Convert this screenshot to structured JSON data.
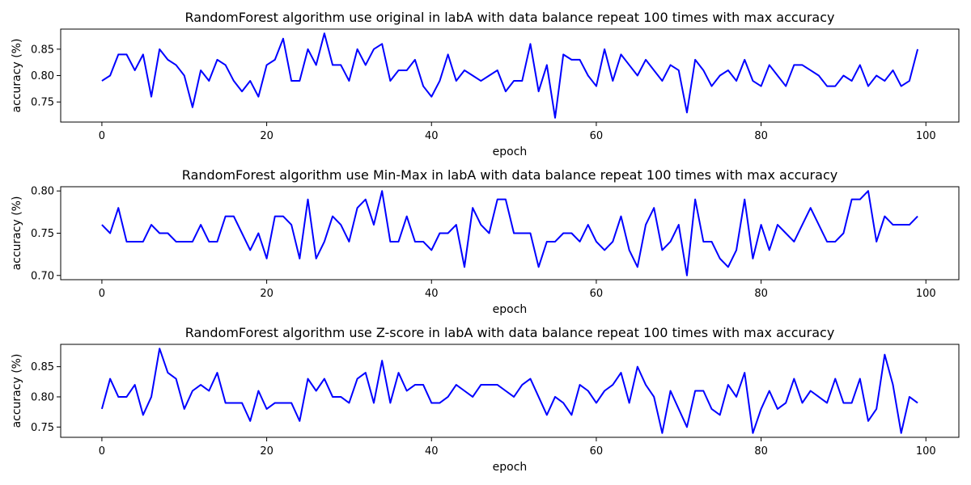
{
  "chart_data": [
    {
      "type": "line",
      "title": "RandomForest algorithm use original in labA with data balance repeat 100 times with max accuracy",
      "xlabel": "epoch",
      "ylabel": "accuracy (%)",
      "xlim": [
        -5,
        104
      ],
      "ylim": [
        0.712,
        0.888
      ],
      "xticks": [
        0,
        20,
        40,
        60,
        80,
        100
      ],
      "xtick_labels": [
        "0",
        "20",
        "40",
        "60",
        "80",
        "100"
      ],
      "yticks": [
        0.75,
        0.8,
        0.85
      ],
      "ytick_labels": [
        "0.75",
        "0.80",
        "0.85"
      ],
      "grid": false,
      "series": [
        {
          "color": "#0000ff",
          "values": [
            0.79,
            0.8,
            0.84,
            0.84,
            0.81,
            0.84,
            0.76,
            0.85,
            0.83,
            0.82,
            0.8,
            0.74,
            0.81,
            0.79,
            0.83,
            0.82,
            0.79,
            0.77,
            0.79,
            0.76,
            0.82,
            0.83,
            0.87,
            0.79,
            0.79,
            0.85,
            0.82,
            0.88,
            0.82,
            0.82,
            0.79,
            0.85,
            0.82,
            0.85,
            0.86,
            0.79,
            0.81,
            0.81,
            0.83,
            0.78,
            0.76,
            0.79,
            0.84,
            0.79,
            0.81,
            0.8,
            0.79,
            0.8,
            0.81,
            0.77,
            0.79,
            0.79,
            0.86,
            0.77,
            0.82,
            0.72,
            0.84,
            0.83,
            0.83,
            0.8,
            0.78,
            0.85,
            0.79,
            0.84,
            0.82,
            0.8,
            0.83,
            0.81,
            0.79,
            0.82,
            0.81,
            0.73,
            0.83,
            0.81,
            0.78,
            0.8,
            0.81,
            0.79,
            0.83,
            0.79,
            0.78,
            0.82,
            0.8,
            0.78,
            0.82,
            0.82,
            0.81,
            0.8,
            0.78,
            0.78,
            0.8,
            0.79,
            0.82,
            0.78,
            0.8,
            0.79,
            0.81,
            0.78,
            0.79,
            0.85
          ]
        }
      ]
    },
    {
      "type": "line",
      "title": "RandomForest algorithm use Min-Max in labA with data balance repeat 100 times with max accuracy",
      "xlabel": "epoch",
      "ylabel": "accuracy (%)",
      "xlim": [
        -5,
        104
      ],
      "ylim": [
        0.695,
        0.805
      ],
      "xticks": [
        0,
        20,
        40,
        60,
        80,
        100
      ],
      "xtick_labels": [
        "0",
        "20",
        "40",
        "60",
        "80",
        "100"
      ],
      "yticks": [
        0.7,
        0.75,
        0.8
      ],
      "ytick_labels": [
        "0.70",
        "0.75",
        "0.80"
      ],
      "grid": false,
      "series": [
        {
          "color": "#0000ff",
          "values": [
            0.76,
            0.75,
            0.78,
            0.74,
            0.74,
            0.74,
            0.76,
            0.75,
            0.75,
            0.74,
            0.74,
            0.74,
            0.76,
            0.74,
            0.74,
            0.77,
            0.77,
            0.75,
            0.73,
            0.75,
            0.72,
            0.77,
            0.77,
            0.76,
            0.72,
            0.79,
            0.72,
            0.74,
            0.77,
            0.76,
            0.74,
            0.78,
            0.79,
            0.76,
            0.8,
            0.74,
            0.74,
            0.77,
            0.74,
            0.74,
            0.73,
            0.75,
            0.75,
            0.76,
            0.71,
            0.78,
            0.76,
            0.75,
            0.79,
            0.79,
            0.75,
            0.75,
            0.75,
            0.71,
            0.74,
            0.74,
            0.75,
            0.75,
            0.74,
            0.76,
            0.74,
            0.73,
            0.74,
            0.77,
            0.73,
            0.71,
            0.76,
            0.78,
            0.73,
            0.74,
            0.76,
            0.7,
            0.79,
            0.74,
            0.74,
            0.72,
            0.71,
            0.73,
            0.79,
            0.72,
            0.76,
            0.73,
            0.76,
            0.75,
            0.74,
            0.76,
            0.78,
            0.76,
            0.74,
            0.74,
            0.75,
            0.79,
            0.79,
            0.8,
            0.74,
            0.77,
            0.76,
            0.76,
            0.76,
            0.77
          ]
        }
      ]
    },
    {
      "type": "line",
      "title": "RandomForest algorithm use Z-score in labA with data balance repeat 100 times with max accuracy",
      "xlabel": "epoch",
      "ylabel": "accuracy (%)",
      "xlim": [
        -5,
        104
      ],
      "ylim": [
        0.733,
        0.887
      ],
      "xticks": [
        0,
        20,
        40,
        60,
        80,
        100
      ],
      "xtick_labels": [
        "0",
        "20",
        "40",
        "60",
        "80",
        "100"
      ],
      "yticks": [
        0.75,
        0.8,
        0.85
      ],
      "ytick_labels": [
        "0.75",
        "0.80",
        "0.85"
      ],
      "grid": false,
      "series": [
        {
          "color": "#0000ff",
          "values": [
            0.78,
            0.83,
            0.8,
            0.8,
            0.82,
            0.77,
            0.8,
            0.88,
            0.84,
            0.83,
            0.78,
            0.81,
            0.82,
            0.81,
            0.84,
            0.79,
            0.79,
            0.79,
            0.76,
            0.81,
            0.78,
            0.79,
            0.79,
            0.79,
            0.76,
            0.83,
            0.81,
            0.83,
            0.8,
            0.8,
            0.79,
            0.83,
            0.84,
            0.79,
            0.86,
            0.79,
            0.84,
            0.81,
            0.82,
            0.82,
            0.79,
            0.79,
            0.8,
            0.82,
            0.81,
            0.8,
            0.82,
            0.82,
            0.82,
            0.81,
            0.8,
            0.82,
            0.83,
            0.8,
            0.77,
            0.8,
            0.79,
            0.77,
            0.82,
            0.81,
            0.79,
            0.81,
            0.82,
            0.84,
            0.79,
            0.85,
            0.82,
            0.8,
            0.74,
            0.81,
            0.78,
            0.75,
            0.81,
            0.81,
            0.78,
            0.77,
            0.82,
            0.8,
            0.84,
            0.74,
            0.78,
            0.81,
            0.78,
            0.79,
            0.83,
            0.79,
            0.81,
            0.8,
            0.79,
            0.83,
            0.79,
            0.79,
            0.83,
            0.76,
            0.78,
            0.87,
            0.82,
            0.74,
            0.8,
            0.79
          ]
        }
      ]
    }
  ]
}
